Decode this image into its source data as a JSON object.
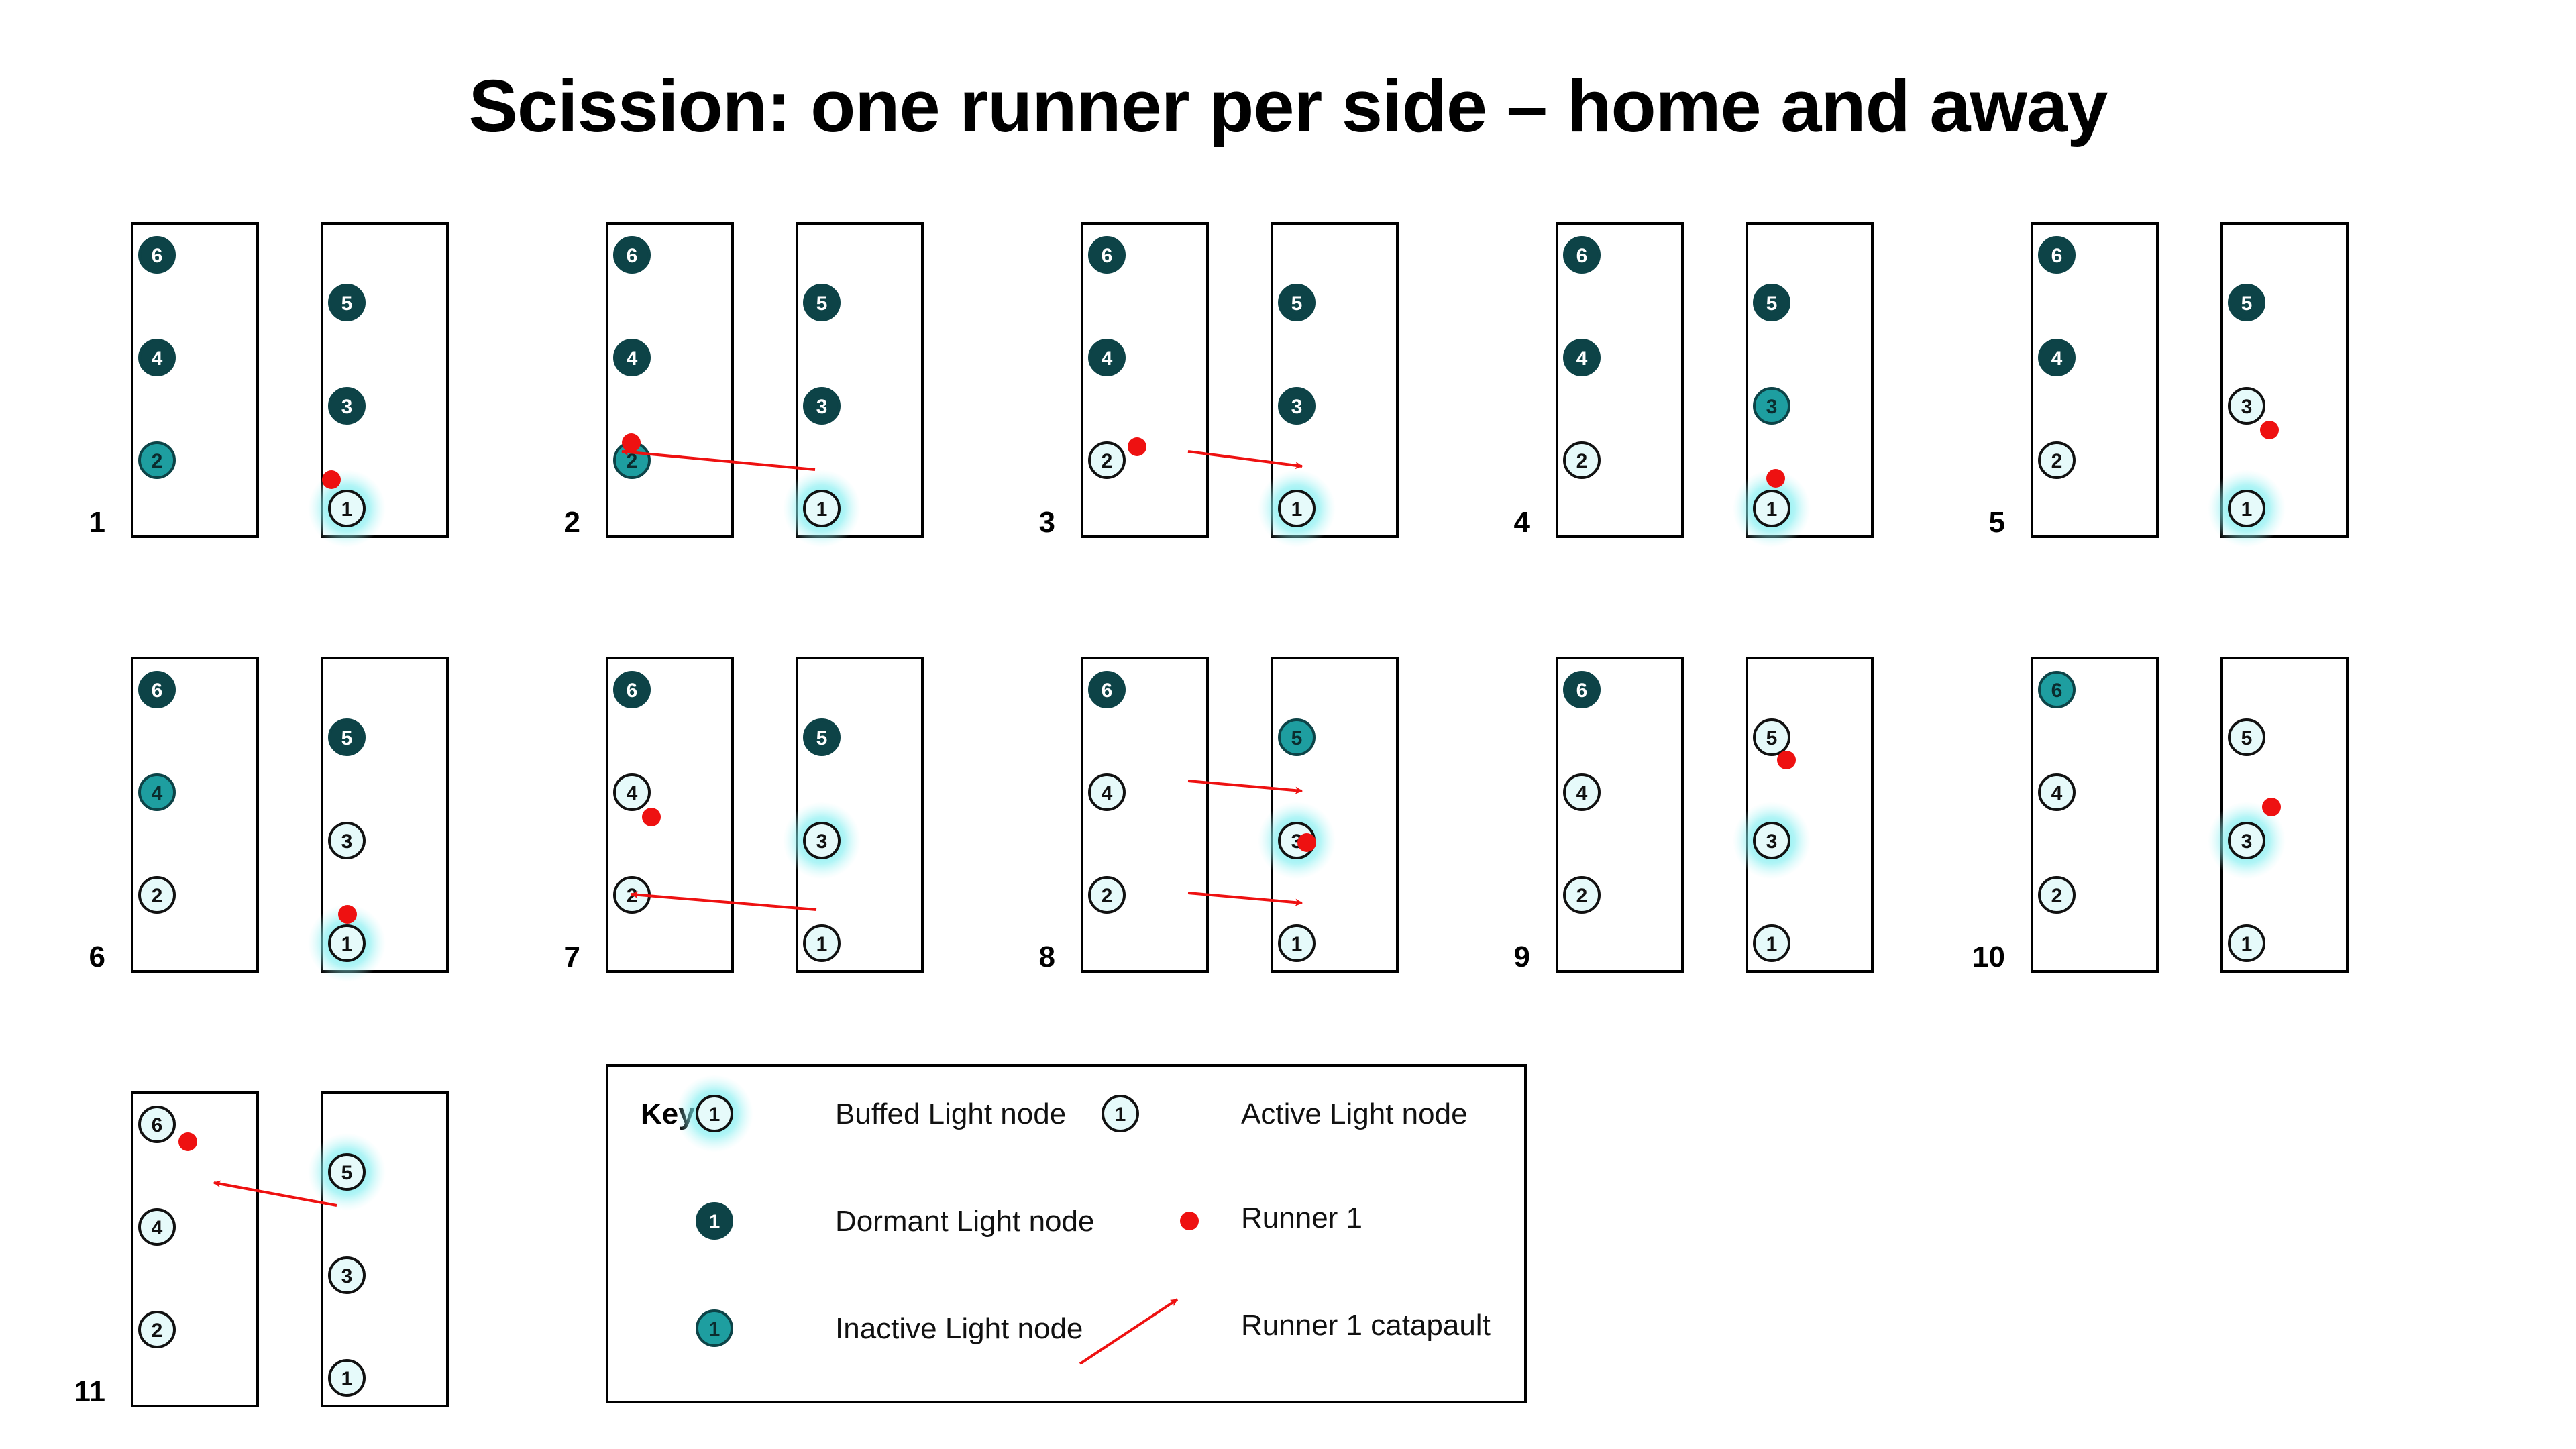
{
  "title": "Scission: one runner per side – home and away",
  "colors": {
    "dormant": "#0d4347",
    "inactive": "#1e9ea0",
    "active": "#e6fafa",
    "glow": "#4fe5ea",
    "runner": "#ee1111",
    "arrow": "#ee1111"
  },
  "panels": [
    {
      "label": "1",
      "left": {
        "6": "dormant",
        "4": "dormant",
        "2": "inactive"
      },
      "right": {
        "5": "dormant",
        "3": "dormant",
        "1": "buffed"
      }
    },
    {
      "label": "2",
      "left": {
        "6": "dormant",
        "4": "dormant",
        "2": "inactive"
      },
      "right": {
        "5": "dormant",
        "3": "dormant",
        "1": "buffed"
      }
    },
    {
      "label": "3",
      "left": {
        "6": "dormant",
        "4": "dormant",
        "2": "active"
      },
      "right": {
        "5": "dormant",
        "3": "dormant",
        "1": "buffed"
      }
    },
    {
      "label": "4",
      "left": {
        "6": "dormant",
        "4": "dormant",
        "2": "active"
      },
      "right": {
        "5": "dormant",
        "3": "inactive",
        "1": "buffed"
      }
    },
    {
      "label": "5",
      "left": {
        "6": "dormant",
        "4": "dormant",
        "2": "active"
      },
      "right": {
        "5": "dormant",
        "3": "active",
        "1": "buffed"
      }
    },
    {
      "label": "6",
      "left": {
        "6": "dormant",
        "4": "inactive",
        "2": "active"
      },
      "right": {
        "5": "dormant",
        "3": "active",
        "1": "buffed"
      }
    },
    {
      "label": "7",
      "left": {
        "6": "dormant",
        "4": "active",
        "2": "active"
      },
      "right": {
        "5": "dormant",
        "3": "buffed",
        "1": "active"
      }
    },
    {
      "label": "8",
      "left": {
        "6": "dormant",
        "4": "active",
        "2": "active"
      },
      "right": {
        "5": "inactive",
        "3": "buffed",
        "1": "active"
      }
    },
    {
      "label": "9",
      "left": {
        "6": "dormant",
        "4": "active",
        "2": "active"
      },
      "right": {
        "5": "active",
        "3": "buffed",
        "1": "active"
      }
    },
    {
      "label": "10",
      "left": {
        "6": "inactive",
        "4": "active",
        "2": "active"
      },
      "right": {
        "5": "active",
        "3": "buffed",
        "1": "active"
      }
    },
    {
      "label": "11",
      "left": {
        "6": "active",
        "4": "active",
        "2": "active"
      },
      "right": {
        "5": "buffed",
        "3": "active",
        "1": "active"
      }
    }
  ],
  "key": {
    "heading": "Key",
    "items": [
      {
        "state": "buffed",
        "label": "Buffed Light node"
      },
      {
        "state": "active",
        "label": "Active Light node"
      },
      {
        "state": "dormant",
        "label": "Dormant Light node"
      },
      {
        "state": "runner",
        "label": "Runner 1"
      },
      {
        "state": "inactive",
        "label": "Inactive Light node"
      },
      {
        "state": "arrow",
        "label": "Runner 1 catapault"
      }
    ],
    "node_number": "1"
  }
}
